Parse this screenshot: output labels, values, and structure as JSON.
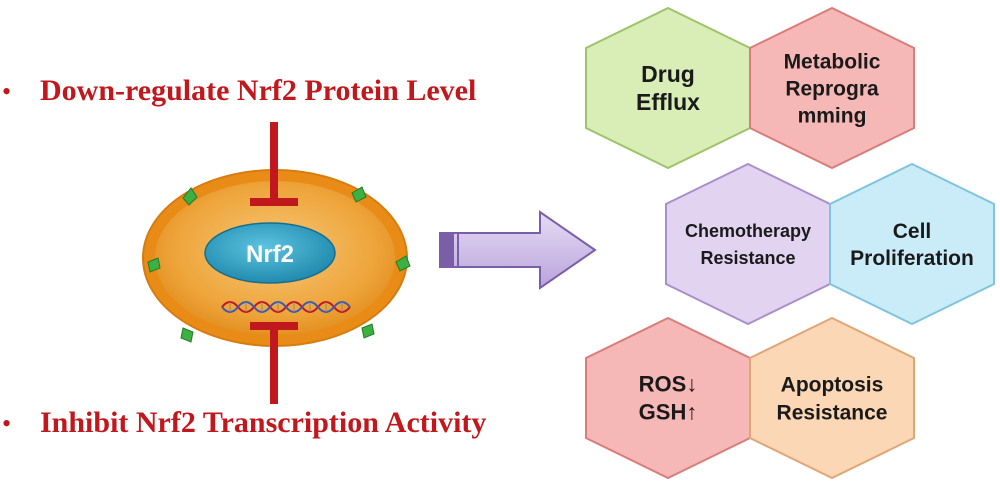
{
  "left": {
    "bullet_top": "Down-regulate Nrf2 Protein Level",
    "bullet_bottom": "Inhibit Nrf2 Transcription Activity",
    "bullet_symbol": "•",
    "nucleus_label": "Nrf2",
    "colors": {
      "bullet_text": "#c0181c",
      "inhibitor": "#c0181c",
      "cell_outer": "#f0a030",
      "cell_inner": "#e9982c",
      "nucleus": "#2f9fbf",
      "receptor": "#3cb040"
    }
  },
  "arrow": {
    "fill": "#cbb8e6",
    "stroke": "#7a5fa8"
  },
  "hexagons": [
    {
      "id": "drug-efflux",
      "lines": [
        "Drug",
        "Efflux"
      ],
      "fill": "#d9edb6",
      "stroke": "#9fc36a"
    },
    {
      "id": "metabolic-reprogramming",
      "lines": [
        "Metabolic",
        "Reprogra",
        "mming"
      ],
      "fill": "#f6b8b6",
      "stroke": "#d97d7b"
    },
    {
      "id": "chemotherapy-resistance",
      "lines": [
        "Chemotherapy",
        "Resistance"
      ],
      "fill": "#e2d4f0",
      "stroke": "#a98fcb"
    },
    {
      "id": "cell-proliferation",
      "lines": [
        "Cell",
        "Proliferation"
      ],
      "fill": "#c9ecf8",
      "stroke": "#7fc4dc"
    },
    {
      "id": "ros-gsh",
      "lines": [
        "ROS↓",
        "GSH↑"
      ],
      "fill": "#f6b8b6",
      "stroke": "#d97d7b"
    },
    {
      "id": "apoptosis-resistance",
      "lines": [
        "Apoptosis",
        "Resistance"
      ],
      "fill": "#fbd7b6",
      "stroke": "#e0a675"
    }
  ]
}
